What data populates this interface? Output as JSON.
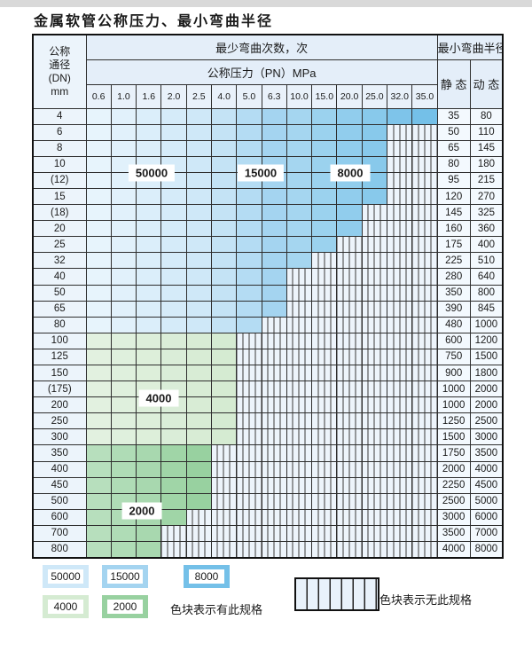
{
  "title": "金属软管公称压力、最小弯曲半径",
  "table": {
    "corner": [
      "公称",
      "通径",
      "(DN)",
      "mm"
    ],
    "bend_cycles_header": "最少弯曲次数，次",
    "pressure_header": "公称压力（PN）MPa",
    "radius_header": "最小弯曲半径",
    "static_header": "静 态",
    "dynamic_header": "动 态",
    "pressure_columns": [
      "0.6",
      "1.0",
      "1.6",
      "2.0",
      "2.5",
      "4.0",
      "5.0",
      "6.3",
      "10.0",
      "15.0",
      "20.0",
      "25.0",
      "32.0",
      "35.0"
    ],
    "rows": [
      {
        "dn": "4",
        "band": "blue",
        "last": 13,
        "static": "35",
        "dynamic": "80"
      },
      {
        "dn": "6",
        "band": "blue",
        "last": 11,
        "static": "50",
        "dynamic": "110"
      },
      {
        "dn": "8",
        "band": "blue",
        "last": 11,
        "static": "65",
        "dynamic": "145"
      },
      {
        "dn": "10",
        "band": "blue",
        "last": 11,
        "static": "80",
        "dynamic": "180"
      },
      {
        "dn": "(12)",
        "band": "blue",
        "last": 11,
        "static": "95",
        "dynamic": "215"
      },
      {
        "dn": "15",
        "band": "blue",
        "last": 11,
        "static": "120",
        "dynamic": "270"
      },
      {
        "dn": "(18)",
        "band": "blue",
        "last": 10,
        "static": "145",
        "dynamic": "325"
      },
      {
        "dn": "20",
        "band": "blue",
        "last": 10,
        "static": "160",
        "dynamic": "360"
      },
      {
        "dn": "25",
        "band": "blue",
        "last": 9,
        "static": "175",
        "dynamic": "400"
      },
      {
        "dn": "32",
        "band": "blue",
        "last": 8,
        "static": "225",
        "dynamic": "510"
      },
      {
        "dn": "40",
        "band": "blue",
        "last": 7,
        "static": "280",
        "dynamic": "640"
      },
      {
        "dn": "50",
        "band": "blue",
        "last": 7,
        "static": "350",
        "dynamic": "800"
      },
      {
        "dn": "65",
        "band": "blue",
        "last": 7,
        "static": "390",
        "dynamic": "845"
      },
      {
        "dn": "80",
        "band": "blue",
        "last": 6,
        "static": "480",
        "dynamic": "1000"
      },
      {
        "dn": "100",
        "band": "g4000",
        "last": 5,
        "static": "600",
        "dynamic": "1200"
      },
      {
        "dn": "125",
        "band": "g4000",
        "last": 5,
        "static": "750",
        "dynamic": "1500"
      },
      {
        "dn": "150",
        "band": "g4000",
        "last": 5,
        "static": "900",
        "dynamic": "1800"
      },
      {
        "dn": "(175)",
        "band": "g4000",
        "last": 5,
        "static": "1000",
        "dynamic": "2000"
      },
      {
        "dn": "200",
        "band": "g4000",
        "last": 5,
        "static": "1000",
        "dynamic": "2000"
      },
      {
        "dn": "250",
        "band": "g4000",
        "last": 5,
        "static": "1250",
        "dynamic": "2500"
      },
      {
        "dn": "300",
        "band": "g4000",
        "last": 5,
        "static": "1500",
        "dynamic": "3000"
      },
      {
        "dn": "350",
        "band": "g2000",
        "last": 4,
        "static": "1750",
        "dynamic": "3500"
      },
      {
        "dn": "400",
        "band": "g2000",
        "last": 4,
        "static": "2000",
        "dynamic": "4000"
      },
      {
        "dn": "450",
        "band": "g2000",
        "last": 4,
        "static": "2250",
        "dynamic": "4500"
      },
      {
        "dn": "500",
        "band": "g2000",
        "last": 4,
        "static": "2500",
        "dynamic": "5000"
      },
      {
        "dn": "600",
        "band": "g2000",
        "last": 3,
        "static": "3000",
        "dynamic": "6000"
      },
      {
        "dn": "700",
        "band": "g2000",
        "last": 2,
        "static": "3500",
        "dynamic": "7000"
      },
      {
        "dn": "800",
        "band": "g2000",
        "last": 2,
        "static": "4000",
        "dynamic": "8000"
      }
    ]
  },
  "in_table_labels": [
    "50000",
    "15000",
    "8000",
    "4000",
    "2000"
  ],
  "legend": {
    "items": [
      {
        "label": "50000",
        "color": "#cfe8f8"
      },
      {
        "label": "15000",
        "color": "#a4d4f0"
      },
      {
        "label": "8000",
        "color": "#74c0e8"
      },
      {
        "label": "4000",
        "color": "#d5ebd2"
      },
      {
        "label": "2000",
        "color": "#98d1a0"
      }
    ],
    "has_spec_text": "色块表示有此规格",
    "no_spec_text": "色块表示无此规格"
  },
  "colors": {
    "c50000": "#cfe8f8",
    "c15000": "#a4d4f0",
    "c8000": "#74c0e8",
    "c4000": "#d5ebd2",
    "c2000": "#98d1a0",
    "stripe_bg": "#edf4fb",
    "header_bg": "#e4eef9",
    "grid": "#2e2e2e"
  }
}
